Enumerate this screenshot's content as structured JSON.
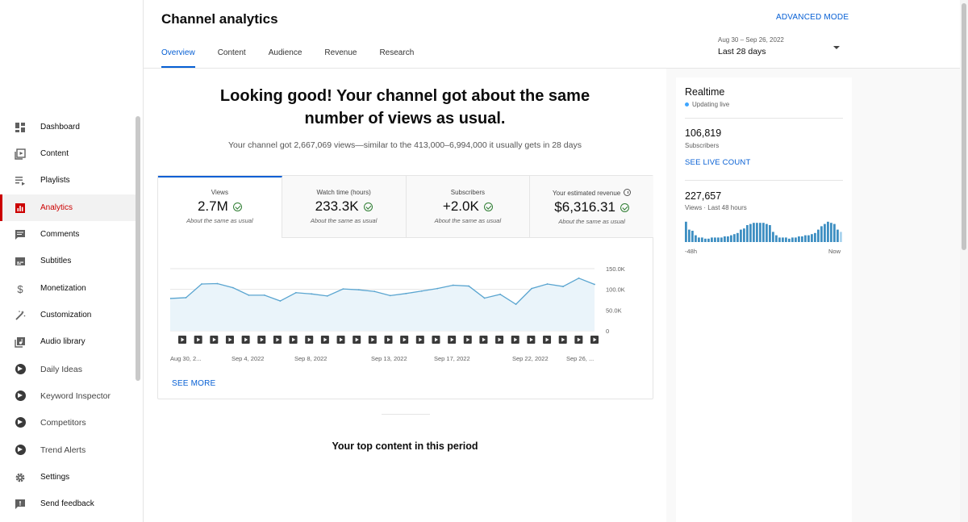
{
  "sidebar": {
    "items": [
      {
        "label": "Dashboard",
        "icon": "dashboard-icon"
      },
      {
        "label": "Content",
        "icon": "content-icon"
      },
      {
        "label": "Playlists",
        "icon": "playlists-icon"
      },
      {
        "label": "Analytics",
        "icon": "analytics-icon",
        "active": true
      },
      {
        "label": "Comments",
        "icon": "comments-icon"
      },
      {
        "label": "Subtitles",
        "icon": "subtitles-icon"
      },
      {
        "label": "Monetization",
        "icon": "dollar-icon"
      },
      {
        "label": "Customization",
        "icon": "magic-wand-icon"
      },
      {
        "label": "Audio library",
        "icon": "audio-library-icon"
      },
      {
        "label": "Daily Ideas",
        "icon": "extension-play-icon"
      },
      {
        "label": "Keyword Inspector",
        "icon": "extension-play-icon"
      },
      {
        "label": "Competitors",
        "icon": "extension-play-icon"
      },
      {
        "label": "Trend Alerts",
        "icon": "extension-play-icon"
      },
      {
        "label": "Settings",
        "icon": "gear-icon"
      },
      {
        "label": "Send feedback",
        "icon": "feedback-icon"
      }
    ]
  },
  "header": {
    "title": "Channel analytics",
    "advanced_mode": "ADVANCED MODE",
    "tabs": [
      "Overview",
      "Content",
      "Audience",
      "Revenue",
      "Research"
    ],
    "date_range": {
      "dates": "Aug 30 – Sep 26, 2022",
      "period": "Last 28 days"
    }
  },
  "main": {
    "headline": "Looking good! Your channel got about the same number of views as usual.",
    "summary": "Your channel got 2,667,069 views—similar to the 413,000–6,994,000 it usually gets in 28 days",
    "metrics": [
      {
        "label": "Views",
        "value": "2.7M",
        "note": "About the same as usual",
        "active": true
      },
      {
        "label": "Watch time (hours)",
        "value": "233.3K",
        "note": "About the same as usual"
      },
      {
        "label": "Subscribers",
        "value": "+2.0K",
        "note": "About the same as usual"
      },
      {
        "label": "Your estimated revenue",
        "value": "$6,316.31",
        "note": "About the same as usual",
        "info": true
      }
    ],
    "see_more": "SEE MORE",
    "top_content": "Your top content in this period"
  },
  "chart_data": {
    "type": "area",
    "x_labels": [
      "Aug 30, 2...",
      "Sep 4, 2022",
      "Sep 8, 2022",
      "Sep 13, 2022",
      "Sep 17, 2022",
      "Sep 22, 2022",
      "Sep 26, ..."
    ],
    "y_ticks": [
      "150.0K",
      "100.0K",
      "50.0K",
      "0"
    ],
    "ylim": [
      0,
      150000
    ],
    "values": [
      78000,
      80000,
      113000,
      114000,
      104000,
      86000,
      86000,
      72000,
      92000,
      89000,
      84000,
      101000,
      99000,
      95000,
      85000,
      90000,
      96000,
      102000,
      110000,
      108000,
      79000,
      88000,
      64000,
      102000,
      113000,
      107000,
      127000,
      112000
    ],
    "upload_markers": 27,
    "color": "#5aa5d0",
    "fill": "#eaf4fa"
  },
  "realtime": {
    "title": "Realtime",
    "live_text": "Updating live",
    "subscribers": "106,819",
    "subscribers_label": "Subscribers",
    "see_live_count": "SEE LIVE COUNT",
    "views": "227,657",
    "views_label": "Views · Last 48 hours",
    "bars": [
      0.9,
      0.55,
      0.5,
      0.3,
      0.2,
      0.2,
      0.15,
      0.15,
      0.2,
      0.2,
      0.2,
      0.2,
      0.25,
      0.25,
      0.3,
      0.35,
      0.4,
      0.55,
      0.6,
      0.75,
      0.8,
      0.85,
      0.85,
      0.85,
      0.85,
      0.8,
      0.75,
      0.45,
      0.3,
      0.2,
      0.2,
      0.2,
      0.15,
      0.2,
      0.2,
      0.25,
      0.25,
      0.3,
      0.3,
      0.35,
      0.4,
      0.55,
      0.7,
      0.8,
      0.9,
      0.85,
      0.8,
      0.55,
      0.45
    ],
    "axis_left": "-48h",
    "axis_right": "Now"
  }
}
